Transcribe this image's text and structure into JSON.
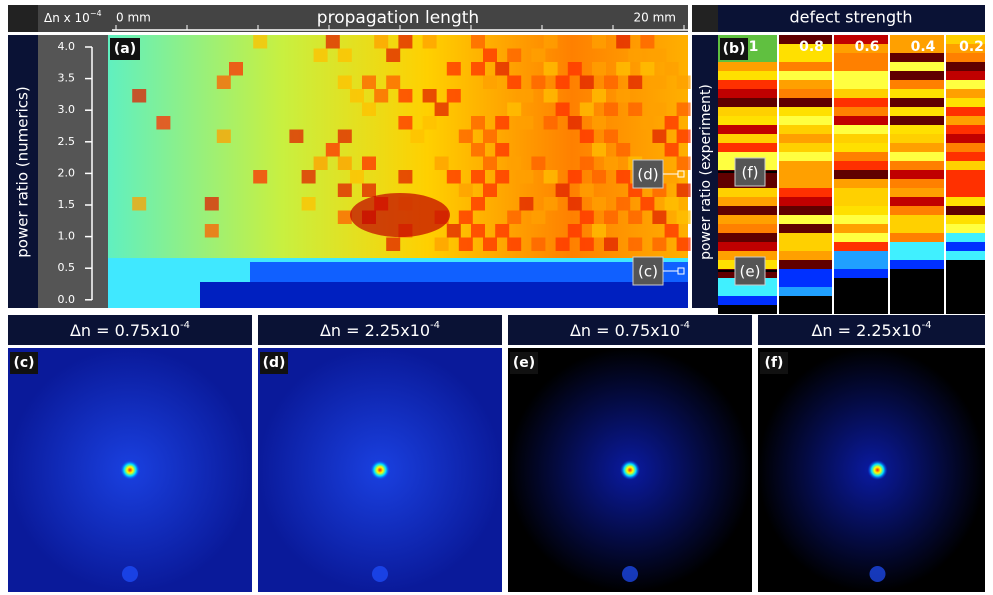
{
  "panel_a": {
    "tag": "(a)",
    "x_unit": "Δn x 10",
    "x_unit_exp": "−4",
    "x_start": "0 mm",
    "x_label": "propagation length",
    "x_end": "20 mm",
    "y_label": "power ratio (numerics)",
    "yticks": [
      "4.0",
      "3.5",
      "3.0",
      "2.5",
      "2.0",
      "1.5",
      "1.0",
      "0.5",
      "0.0"
    ],
    "markers": [
      "(d)",
      "(c)"
    ]
  },
  "panel_b": {
    "tag": "(b)",
    "title": "defect strength",
    "columns": [
      "1",
      "0.8",
      "0.6",
      "0.4",
      "0.2"
    ],
    "y_label": "power ratio (experiment)",
    "markers": [
      "(f)",
      "(e)"
    ]
  },
  "bottom": [
    {
      "tag": "(c)",
      "title": "Δn = 0.75x10",
      "exp": "-4"
    },
    {
      "tag": "(d)",
      "title": "Δn = 2.25x10",
      "exp": "-4"
    },
    {
      "tag": "(e)",
      "title": "Δn = 0.75x10",
      "exp": "-4"
    },
    {
      "tag": "(f)",
      "title": "Δn = 2.25x10",
      "exp": "-4"
    }
  ]
}
